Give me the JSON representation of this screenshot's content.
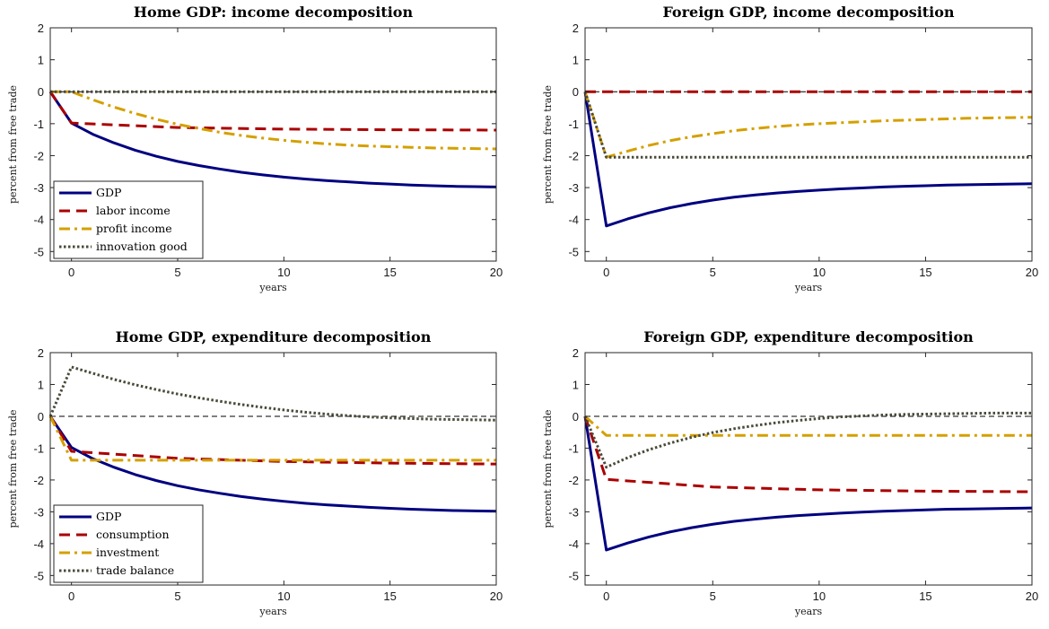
{
  "chart_data": [
    {
      "type": "line",
      "title": "Home GDP: income decomposition",
      "xlabel": "years",
      "ylabel": "percent from free trade",
      "xlim": [
        -1,
        20
      ],
      "ylim": [
        -5.3,
        2
      ],
      "xticks": [
        0,
        5,
        10,
        15,
        20
      ],
      "yticks": [
        2,
        1,
        0,
        -1,
        -2,
        -3,
        -4,
        -5
      ],
      "zero_line": true,
      "legend_position": "bottom-left",
      "series": [
        {
          "name": "GDP",
          "color": "#000080",
          "style": "solid",
          "x": [
            -1,
            0,
            1,
            2,
            3,
            4,
            5,
            6,
            7,
            8,
            9,
            10,
            11,
            12,
            13,
            14,
            15,
            16,
            17,
            18,
            19,
            20
          ],
          "y": [
            0,
            -0.98,
            -1.33,
            -1.6,
            -1.83,
            -2.02,
            -2.18,
            -2.31,
            -2.42,
            -2.52,
            -2.6,
            -2.67,
            -2.73,
            -2.78,
            -2.82,
            -2.86,
            -2.89,
            -2.92,
            -2.94,
            -2.96,
            -2.97,
            -2.98
          ]
        },
        {
          "name": "labor income",
          "color": "#aa0000",
          "style": "dashed",
          "x": [
            -1,
            0,
            5,
            10,
            15,
            20
          ],
          "y": [
            0,
            -0.98,
            -1.12,
            -1.17,
            -1.19,
            -1.2
          ]
        },
        {
          "name": "profit income",
          "color": "#d4a000",
          "style": "dashdot",
          "x": [
            -1,
            0,
            1,
            2,
            3,
            4,
            5,
            6,
            7,
            8,
            9,
            10,
            11,
            12,
            13,
            14,
            15,
            16,
            17,
            18,
            19,
            20
          ],
          "y": [
            0,
            0,
            -0.25,
            -0.48,
            -0.68,
            -0.86,
            -1.02,
            -1.15,
            -1.27,
            -1.37,
            -1.45,
            -1.52,
            -1.58,
            -1.63,
            -1.67,
            -1.7,
            -1.72,
            -1.74,
            -1.76,
            -1.77,
            -1.78,
            -1.79
          ]
        },
        {
          "name": "innovation good",
          "color": "#4a4a3a",
          "style": "dotted",
          "x": [
            -1,
            20
          ],
          "y": [
            0,
            0
          ]
        }
      ]
    },
    {
      "type": "line",
      "title": "Foreign GDP, income decomposition",
      "xlabel": "years",
      "ylabel": "percent from free trade",
      "xlim": [
        -1,
        20
      ],
      "ylim": [
        -5.3,
        2
      ],
      "xticks": [
        0,
        5,
        10,
        15,
        20
      ],
      "yticks": [
        2,
        1,
        0,
        -1,
        -2,
        -3,
        -4,
        -5
      ],
      "zero_line": true,
      "series": [
        {
          "name": "GDP",
          "color": "#000080",
          "style": "solid",
          "x": [
            -1,
            0,
            1,
            2,
            3,
            4,
            5,
            6,
            7,
            8,
            9,
            10,
            11,
            12,
            13,
            14,
            15,
            16,
            17,
            18,
            19,
            20
          ],
          "y": [
            0,
            -4.2,
            -3.98,
            -3.79,
            -3.63,
            -3.5,
            -3.39,
            -3.3,
            -3.23,
            -3.17,
            -3.12,
            -3.08,
            -3.04,
            -3.01,
            -2.98,
            -2.96,
            -2.94,
            -2.92,
            -2.91,
            -2.9,
            -2.89,
            -2.88
          ]
        },
        {
          "name": "labor income",
          "color": "#aa0000",
          "style": "dashed",
          "x": [
            -1,
            20
          ],
          "y": [
            0,
            0
          ]
        },
        {
          "name": "profit income",
          "color": "#d4a000",
          "style": "dashdot",
          "x": [
            -1,
            0,
            1,
            2,
            3,
            4,
            5,
            6,
            7,
            8,
            9,
            10,
            11,
            12,
            13,
            14,
            15,
            16,
            17,
            18,
            19,
            20
          ],
          "y": [
            0,
            -2.05,
            -1.86,
            -1.68,
            -1.53,
            -1.41,
            -1.31,
            -1.22,
            -1.15,
            -1.09,
            -1.04,
            -1.0,
            -0.97,
            -0.94,
            -0.91,
            -0.89,
            -0.87,
            -0.85,
            -0.83,
            -0.82,
            -0.81,
            -0.8
          ]
        },
        {
          "name": "innovation good",
          "color": "#4a4a3a",
          "style": "dotted",
          "x": [
            -1,
            0,
            20
          ],
          "y": [
            0,
            -2.05,
            -2.05
          ]
        }
      ]
    },
    {
      "type": "line",
      "title": "Home GDP, expenditure decomposition",
      "xlabel": "years",
      "ylabel": "percent from free trade",
      "xlim": [
        -1,
        20
      ],
      "ylim": [
        -5.3,
        2
      ],
      "xticks": [
        0,
        5,
        10,
        15,
        20
      ],
      "yticks": [
        2,
        1,
        0,
        -1,
        -2,
        -3,
        -4,
        -5
      ],
      "zero_line": true,
      "legend_position": "bottom-left",
      "series": [
        {
          "name": "GDP",
          "color": "#000080",
          "style": "solid",
          "x": [
            -1,
            0,
            1,
            2,
            3,
            4,
            5,
            6,
            7,
            8,
            9,
            10,
            11,
            12,
            13,
            14,
            15,
            16,
            17,
            18,
            19,
            20
          ],
          "y": [
            0,
            -0.98,
            -1.33,
            -1.6,
            -1.83,
            -2.02,
            -2.18,
            -2.31,
            -2.42,
            -2.52,
            -2.6,
            -2.67,
            -2.73,
            -2.78,
            -2.82,
            -2.86,
            -2.89,
            -2.92,
            -2.94,
            -2.96,
            -2.97,
            -2.98
          ]
        },
        {
          "name": "consumption",
          "color": "#aa0000",
          "style": "dashed",
          "x": [
            -1,
            0,
            5,
            10,
            15,
            20
          ],
          "y": [
            0,
            -1.1,
            -1.32,
            -1.42,
            -1.47,
            -1.5
          ]
        },
        {
          "name": "investment",
          "color": "#d4a000",
          "style": "dashdot",
          "x": [
            -1,
            0,
            20
          ],
          "y": [
            0,
            -1.38,
            -1.38
          ]
        },
        {
          "name": "trade balance",
          "color": "#4a4a3a",
          "style": "dotted",
          "x": [
            -1,
            0,
            1,
            2,
            3,
            4,
            5,
            6,
            7,
            8,
            9,
            10,
            11,
            12,
            13,
            14,
            15,
            16,
            17,
            18,
            19,
            20
          ],
          "y": [
            0,
            1.55,
            1.35,
            1.16,
            0.99,
            0.84,
            0.7,
            0.58,
            0.47,
            0.37,
            0.28,
            0.2,
            0.13,
            0.07,
            0.02,
            -0.02,
            -0.05,
            -0.07,
            -0.09,
            -0.1,
            -0.11,
            -0.12
          ]
        }
      ]
    },
    {
      "type": "line",
      "title": "Foreign GDP, expenditure decomposition",
      "xlabel": "years",
      "ylabel": "percent from free trade",
      "xlim": [
        -1,
        20
      ],
      "ylim": [
        -5.3,
        2
      ],
      "xticks": [
        0,
        5,
        10,
        15,
        20
      ],
      "yticks": [
        2,
        1,
        0,
        -1,
        -2,
        -3,
        -4,
        -5
      ],
      "zero_line": true,
      "series": [
        {
          "name": "GDP",
          "color": "#000080",
          "style": "solid",
          "x": [
            -1,
            0,
            1,
            2,
            3,
            4,
            5,
            6,
            7,
            8,
            9,
            10,
            11,
            12,
            13,
            14,
            15,
            16,
            17,
            18,
            19,
            20
          ],
          "y": [
            0,
            -4.2,
            -3.98,
            -3.79,
            -3.63,
            -3.5,
            -3.39,
            -3.3,
            -3.23,
            -3.17,
            -3.12,
            -3.08,
            -3.04,
            -3.01,
            -2.98,
            -2.96,
            -2.94,
            -2.92,
            -2.91,
            -2.9,
            -2.89,
            -2.88
          ]
        },
        {
          "name": "consumption",
          "color": "#aa0000",
          "style": "dashed",
          "x": [
            -1,
            0,
            5,
            10,
            15,
            20
          ],
          "y": [
            0,
            -1.98,
            -2.22,
            -2.31,
            -2.35,
            -2.37
          ]
        },
        {
          "name": "investment",
          "color": "#d4a000",
          "style": "dashdot",
          "x": [
            -1,
            0,
            20
          ],
          "y": [
            0,
            -0.6,
            -0.6
          ]
        },
        {
          "name": "trade balance",
          "color": "#4a4a3a",
          "style": "dotted",
          "x": [
            -1,
            0,
            1,
            2,
            3,
            4,
            5,
            6,
            7,
            8,
            9,
            10,
            11,
            12,
            13,
            14,
            15,
            16,
            17,
            18,
            19,
            20
          ],
          "y": [
            0,
            -1.6,
            -1.3,
            -1.05,
            -0.84,
            -0.66,
            -0.51,
            -0.39,
            -0.29,
            -0.2,
            -0.13,
            -0.07,
            -0.02,
            0.01,
            0.04,
            0.06,
            0.07,
            0.08,
            0.09,
            0.1,
            0.1,
            0.1
          ]
        }
      ]
    }
  ]
}
